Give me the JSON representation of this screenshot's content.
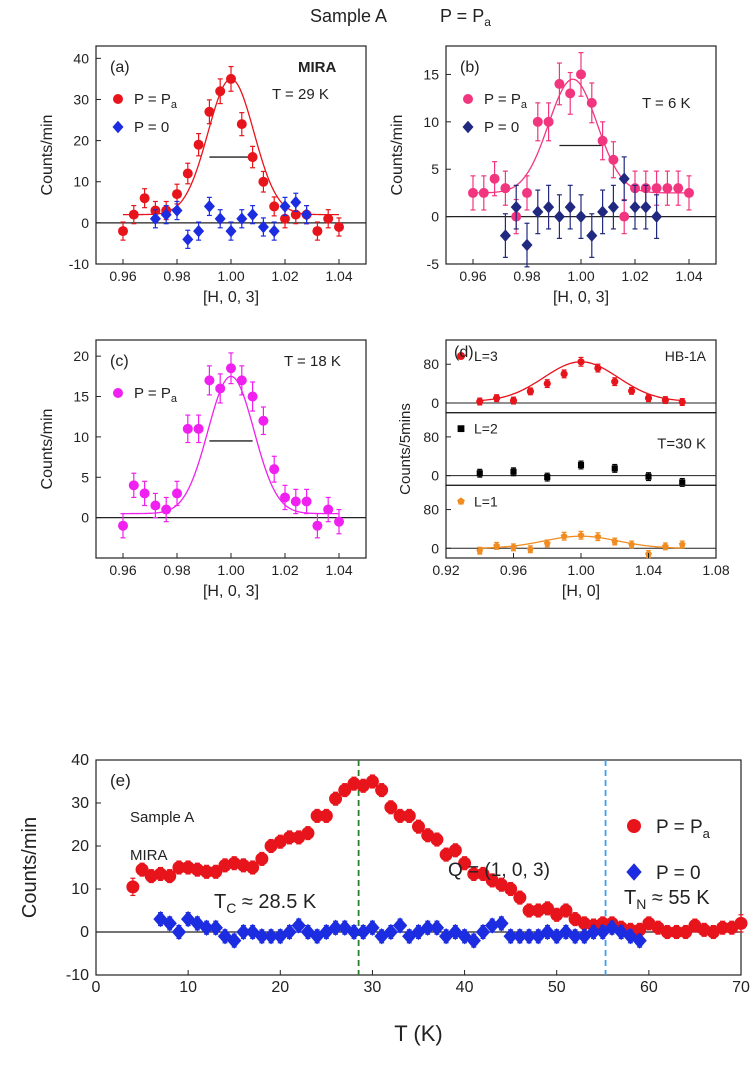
{
  "figure": {
    "title_sample": "Sample A",
    "title_pressure": "P = P",
    "title_pressure_sub": "a"
  },
  "chart_data": [
    {
      "id": "a",
      "type": "scatter",
      "panel_label": "(a)",
      "instrument": "MIRA",
      "temperature": "T = 29 K",
      "xlabel": "[H, 0, 3]",
      "ylabel": "Counts/min",
      "xlim": [
        0.95,
        1.05
      ],
      "ylim": [
        -10,
        43
      ],
      "xticks": [
        0.96,
        0.98,
        1.0,
        1.02,
        1.04
      ],
      "yticks": [
        -10,
        0,
        10,
        20,
        30,
        40
      ],
      "resolution_bar": [
        0.992,
        1.008,
        16
      ],
      "series": [
        {
          "name": "P = P",
          "name_sub": "a",
          "color": "#e8141c",
          "marker": "circle",
          "x": [
            0.96,
            0.964,
            0.968,
            0.972,
            0.976,
            0.98,
            0.984,
            0.988,
            0.992,
            0.996,
            1.0,
            1.004,
            1.008,
            1.012,
            1.016,
            1.02,
            1.024,
            1.028,
            1.032,
            1.036,
            1.04
          ],
          "y": [
            -2,
            2,
            6,
            3,
            3,
            7,
            12,
            19,
            27,
            32,
            35,
            24,
            16,
            10,
            4,
            1,
            2,
            2,
            -2,
            1,
            -1
          ],
          "err": [
            2.2,
            2.2,
            2.3,
            2.2,
            2.2,
            2.4,
            2.5,
            2.7,
            2.9,
            3,
            3,
            2.8,
            2.6,
            2.5,
            2.3,
            2.2,
            2.2,
            2.2,
            2.2,
            2.2,
            2.2
          ],
          "fit": {
            "a": 33,
            "x0": 1.0,
            "sigma": 0.0085,
            "c": 2
          }
        },
        {
          "name": "P = 0",
          "color": "#1c2ce0",
          "marker": "diamond",
          "x": [
            0.972,
            0.976,
            0.98,
            0.984,
            0.988,
            0.992,
            0.996,
            1.0,
            1.004,
            1.008,
            1.012,
            1.016,
            1.02,
            1.024,
            1.028
          ],
          "y": [
            1,
            2,
            3,
            -4,
            -2,
            4,
            1,
            -2,
            1,
            2,
            -1,
            -2,
            4,
            5,
            2
          ],
          "err": [
            2.2,
            2.2,
            2.2,
            2.2,
            2.2,
            2.2,
            2.2,
            2.2,
            2.2,
            2.2,
            2.2,
            2.2,
            2.2,
            2.2,
            2.2
          ]
        }
      ]
    },
    {
      "id": "b",
      "type": "scatter",
      "panel_label": "(b)",
      "temperature": "T = 6 K",
      "xlabel": "[H, 0, 3]",
      "ylabel": "Counts/min",
      "xlim": [
        0.95,
        1.05
      ],
      "ylim": [
        -5,
        18
      ],
      "xticks": [
        0.96,
        0.98,
        1.0,
        1.02,
        1.04
      ],
      "yticks": [
        -5,
        0,
        5,
        10,
        15
      ],
      "resolution_bar": [
        0.992,
        1.008,
        7.5
      ],
      "series": [
        {
          "name": "P = P",
          "name_sub": "a",
          "color": "#f2357f",
          "marker": "circle",
          "x": [
            0.96,
            0.964,
            0.968,
            0.972,
            0.976,
            0.98,
            0.984,
            0.988,
            0.992,
            0.996,
            1.0,
            1.004,
            1.008,
            1.012,
            1.016,
            1.02,
            1.024,
            1.028,
            1.032,
            1.036,
            1.04
          ],
          "y": [
            2.5,
            2.5,
            4,
            3,
            0,
            2.5,
            10,
            10,
            14,
            13,
            15,
            12,
            8,
            6,
            0,
            3,
            3,
            3,
            3,
            3,
            2.5
          ],
          "err": [
            1.8,
            1.8,
            1.8,
            1.8,
            1.8,
            1.8,
            2,
            2,
            2.2,
            2.2,
            2.3,
            2.1,
            2,
            1.9,
            1.8,
            1.8,
            1.8,
            1.8,
            1.8,
            1.8,
            1.8
          ],
          "fit": {
            "a": 12,
            "x0": 0.997,
            "sigma": 0.009,
            "c": 2.5
          }
        },
        {
          "name": "P = 0",
          "color": "#202880",
          "marker": "diamond",
          "x": [
            0.972,
            0.976,
            0.98,
            0.984,
            0.988,
            0.992,
            0.996,
            1.0,
            1.004,
            1.008,
            1.012,
            1.016,
            1.02,
            1.024,
            1.028
          ],
          "y": [
            -2,
            1,
            -3,
            0.5,
            1,
            0,
            1,
            0,
            -2,
            0.5,
            1,
            4,
            1,
            1,
            0
          ],
          "err": [
            2.3,
            2.3,
            2.3,
            2.3,
            2.3,
            2.3,
            2.3,
            2.3,
            2.3,
            2.3,
            2.3,
            2.3,
            2.3,
            2.3,
            2.3
          ]
        }
      ]
    },
    {
      "id": "c",
      "type": "scatter",
      "panel_label": "(c)",
      "temperature": "T = 18 K",
      "xlabel": "[H, 0, 3]",
      "ylabel": "Counts/min",
      "xlim": [
        0.95,
        1.05
      ],
      "ylim": [
        -5,
        22
      ],
      "xticks": [
        0.96,
        0.98,
        1.0,
        1.02,
        1.04
      ],
      "yticks": [
        0,
        5,
        10,
        15,
        20
      ],
      "resolution_bar": [
        0.992,
        1.008,
        9.5
      ],
      "series": [
        {
          "name": "P = P",
          "name_sub": "a",
          "color": "#f020f0",
          "marker": "circle",
          "x": [
            0.96,
            0.964,
            0.968,
            0.972,
            0.976,
            0.98,
            0.984,
            0.988,
            0.992,
            0.996,
            1.0,
            1.004,
            1.008,
            1.012,
            1.016,
            1.02,
            1.024,
            1.028,
            1.032,
            1.036,
            1.04
          ],
          "y": [
            -1,
            4,
            3,
            1.5,
            1,
            3,
            11,
            11,
            17,
            16,
            18.5,
            17,
            15,
            12,
            6,
            2.5,
            2,
            2,
            -1,
            1,
            -0.5
          ],
          "err": [
            1.5,
            1.5,
            1.5,
            1.5,
            1.5,
            1.5,
            1.7,
            1.7,
            1.8,
            1.8,
            1.9,
            1.8,
            1.8,
            1.7,
            1.6,
            1.5,
            1.5,
            1.5,
            1.5,
            1.5,
            1.5
          ],
          "fit": {
            "a": 17,
            "x0": 1.0,
            "sigma": 0.0085,
            "c": 0.5
          }
        }
      ]
    },
    {
      "id": "d",
      "type": "scatter",
      "panel_label": "(d)",
      "instrument": "HB-1A",
      "temperature": "T=30 K",
      "xlabel": "[H, 0]",
      "ylabel": "Counts/5mins",
      "xlim": [
        0.92,
        1.08
      ],
      "xticks": [
        0.92,
        0.96,
        1.0,
        1.04,
        1.08
      ],
      "subplots": [
        {
          "name": "L=3",
          "color": "#e8141c",
          "marker": "circle",
          "ylim": [
            -20,
            130
          ],
          "yticks": [
            0,
            80
          ],
          "x": [
            0.94,
            0.95,
            0.96,
            0.97,
            0.98,
            0.99,
            1.0,
            1.01,
            1.02,
            1.03,
            1.04,
            1.05,
            1.06
          ],
          "y": [
            3,
            10,
            5,
            24,
            40,
            60,
            85,
            72,
            44,
            25,
            10,
            6,
            2
          ],
          "err": [
            7,
            7,
            7,
            7,
            8,
            8,
            9,
            8,
            8,
            7,
            7,
            7,
            7
          ],
          "fit": {
            "a": 82,
            "x0": 1.0,
            "sigma": 0.022,
            "c": 3
          }
        },
        {
          "name": "L=2",
          "color": "#000000",
          "marker": "square",
          "ylim": [
            -20,
            130
          ],
          "yticks": [
            0,
            80
          ],
          "x": [
            0.94,
            0.96,
            0.98,
            1.0,
            1.02,
            1.04,
            1.06
          ],
          "y": [
            5,
            8,
            -3,
            22,
            15,
            -2,
            -14
          ],
          "err": [
            8,
            8,
            8,
            8,
            8,
            8,
            8
          ]
        },
        {
          "name": "L=1",
          "color": "#f08c20",
          "marker": "pentagon",
          "ylim": [
            -20,
            130
          ],
          "yticks": [
            0,
            80
          ],
          "x": [
            0.94,
            0.95,
            0.96,
            0.97,
            0.98,
            0.99,
            1.0,
            1.01,
            1.02,
            1.03,
            1.04,
            1.05,
            1.06
          ],
          "y": [
            -5,
            5,
            2,
            -2,
            10,
            25,
            27,
            24,
            14,
            8,
            -12,
            4,
            8
          ],
          "err": [
            7,
            7,
            7,
            7,
            7,
            8,
            8,
            8,
            7,
            7,
            7,
            7,
            7
          ],
          "fit": {
            "a": 25,
            "x0": 1.0,
            "sigma": 0.022,
            "c": 0
          }
        }
      ]
    },
    {
      "id": "e",
      "type": "scatter",
      "panel_label": "(e)",
      "sample": "Sample A",
      "instrument": "MIRA",
      "q_label": "Q = (1, 0, 3)",
      "tc_label": "T",
      "tc_sub": "C",
      "tc_value": " ≈ 28.5 K",
      "tn_label": "T",
      "tn_sub": "N",
      "tn_value": " ≈ 55 K",
      "xlabel": "T (K)",
      "ylabel": "Counts/min",
      "xlim": [
        0,
        70
      ],
      "ylim": [
        -10,
        40
      ],
      "xticks": [
        0,
        10,
        20,
        30,
        40,
        50,
        60,
        70
      ],
      "yticks": [
        -10,
        0,
        10,
        20,
        30,
        40
      ],
      "vlines": [
        {
          "x": 28.5,
          "color": "#2a7d2a"
        },
        {
          "x": 55.3,
          "color": "#3aa0f0"
        }
      ],
      "series": [
        {
          "name": "P = P",
          "name_sub": "a",
          "color": "#e8141c",
          "marker": "circle",
          "x": [
            4,
            5,
            6,
            7,
            8,
            9,
            10,
            11,
            12,
            13,
            14,
            15,
            16,
            17,
            18,
            19,
            20,
            21,
            22,
            23,
            24,
            25,
            26,
            27,
            28,
            29,
            30,
            31,
            32,
            33,
            34,
            35,
            36,
            37,
            38,
            39,
            40,
            41,
            42,
            43,
            44,
            45,
            46,
            47,
            48,
            49,
            50,
            51,
            52,
            53,
            54,
            55,
            56,
            57,
            58,
            59,
            60,
            61,
            62,
            63,
            64,
            65,
            66,
            67,
            68,
            69,
            70
          ],
          "y": [
            10.5,
            14.5,
            13,
            13.5,
            13,
            15,
            15,
            14.5,
            14,
            14,
            15.5,
            16,
            15.5,
            15,
            17,
            20,
            21,
            22,
            22,
            23,
            27,
            27,
            31,
            33,
            34.5,
            34,
            35,
            33,
            29,
            27,
            27,
            24.5,
            22.5,
            21.5,
            18,
            19,
            16,
            13.5,
            13.5,
            12,
            11,
            10,
            8,
            5,
            5,
            5.5,
            4,
            5,
            3,
            2,
            1.5,
            2,
            2,
            1,
            0.5,
            0.5,
            2,
            1,
            0,
            0,
            0,
            1.5,
            0.5,
            0,
            1,
            1,
            2
          ],
          "err": [
            2,
            1.5,
            1.5,
            1.5,
            1.5,
            1.5,
            1.5,
            1.5,
            1.5,
            1.5,
            1.5,
            1.5,
            1.5,
            1.5,
            1.5,
            1.5,
            1.5,
            1.5,
            1.5,
            1.5,
            1.5,
            1.5,
            1.5,
            1.5,
            1.5,
            1.5,
            1.5,
            1.5,
            1.5,
            1.5,
            1.5,
            1.5,
            1.5,
            1.5,
            1.5,
            1.5,
            1.5,
            1.5,
            1.5,
            1.5,
            1.5,
            1.5,
            1.5,
            1.5,
            1.5,
            1.5,
            1.5,
            1.5,
            1.5,
            1.5,
            1.5,
            1.5,
            1.5,
            1.5,
            1.5,
            1.5,
            1.5,
            1.5,
            1.5,
            1.5,
            1.5,
            1.5,
            1.5,
            1.5,
            1.5,
            1.5,
            2
          ]
        },
        {
          "name": "P = 0",
          "color": "#1c2ce0",
          "marker": "diamond",
          "x": [
            7,
            8,
            9,
            10,
            11,
            12,
            13,
            14,
            15,
            16,
            17,
            18,
            19,
            20,
            21,
            22,
            23,
            24,
            25,
            26,
            27,
            28,
            29,
            30,
            31,
            32,
            33,
            34,
            35,
            36,
            37,
            38,
            39,
            40,
            41,
            42,
            43,
            44,
            45,
            46,
            47,
            48,
            49,
            50,
            51,
            52,
            53,
            54,
            55,
            56,
            57,
            58,
            59
          ],
          "y": [
            3,
            2,
            0,
            3,
            2,
            1,
            1,
            -1,
            -2,
            0,
            0,
            -1,
            -1,
            -1,
            0,
            1.5,
            0,
            -1,
            0,
            1,
            1,
            0,
            0,
            1,
            -1,
            0,
            1.5,
            -1,
            0,
            1,
            1,
            -1,
            0,
            -1,
            -2,
            0,
            1.5,
            2,
            -1,
            -1,
            -1,
            -1,
            0,
            -1,
            0,
            -1,
            -1,
            0,
            0,
            1,
            0,
            -1,
            -2
          ],
          "err": [
            1.5,
            1.5,
            1.5,
            1.5,
            1.5,
            1.5,
            1.5,
            1.5,
            1.5,
            1.5,
            1.5,
            1.5,
            1.5,
            1.5,
            1.5,
            1.5,
            1.5,
            1.5,
            1.5,
            1.5,
            1.5,
            1.5,
            1.5,
            1.5,
            1.5,
            1.5,
            1.5,
            1.5,
            1.5,
            1.5,
            1.5,
            1.5,
            1.5,
            1.5,
            1.5,
            1.5,
            1.5,
            1.5,
            1.5,
            1.5,
            1.5,
            1.5,
            1.5,
            1.5,
            1.5,
            1.5,
            1.5,
            1.5,
            1.5,
            1.5,
            1.5,
            1.5,
            1.5
          ]
        }
      ]
    }
  ]
}
